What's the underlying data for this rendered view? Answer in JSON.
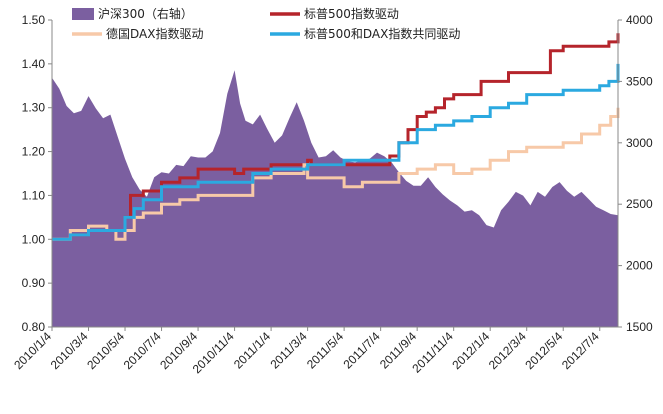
{
  "chart_data": {
    "type": "line",
    "title": "",
    "xlabel": "",
    "ylabel_left": "",
    "ylabel_right": "",
    "ylim_left": [
      0.8,
      1.5
    ],
    "ylim_right": [
      1500,
      4000
    ],
    "left_ticks": [
      "0.80",
      "0.90",
      "1.00",
      "1.10",
      "1.20",
      "1.30",
      "1.40",
      "1.50"
    ],
    "right_ticks": [
      "1500",
      "2000",
      "2500",
      "3000",
      "3500",
      "4000"
    ],
    "x_ticks": [
      "2010/1/4",
      "2010/3/4",
      "2010/5/4",
      "2010/7/4",
      "2010/9/4",
      "2010/11/4",
      "2011/1/4",
      "2011/3/4",
      "2011/5/4",
      "2011/7/4",
      "2011/9/4",
      "2011/11/4",
      "2012/1/4",
      "2012/3/4",
      "2012/5/4",
      "2012/7/4"
    ],
    "x_range_months": [
      0,
      31
    ],
    "legend": {
      "position": "top",
      "entries": [
        {
          "label": "沪深300（右轴）",
          "style": "area",
          "color": "#7b5fa0"
        },
        {
          "label": "标普500指数驱动",
          "style": "line",
          "color": "#b5242b"
        },
        {
          "label": "德国DAX指数驱动",
          "style": "line",
          "color": "#f7c9a8"
        },
        {
          "label": "标普500和DAX指数共同驱动",
          "style": "line",
          "color": "#2ba9e0"
        }
      ]
    },
    "series": [
      {
        "name": "沪深300（右轴）",
        "axis": "right",
        "type": "area",
        "color": "#7b5fa0",
        "points": [
          [
            0,
            3530
          ],
          [
            0.4,
            3440
          ],
          [
            0.8,
            3300
          ],
          [
            1.2,
            3240
          ],
          [
            1.6,
            3260
          ],
          [
            2,
            3380
          ],
          [
            2.4,
            3280
          ],
          [
            2.8,
            3200
          ],
          [
            3.2,
            3230
          ],
          [
            3.6,
            3050
          ],
          [
            4,
            2870
          ],
          [
            4.4,
            2720
          ],
          [
            4.8,
            2620
          ],
          [
            5.2,
            2560
          ],
          [
            5.6,
            2720
          ],
          [
            6,
            2760
          ],
          [
            6.4,
            2750
          ],
          [
            6.8,
            2820
          ],
          [
            7.2,
            2810
          ],
          [
            7.6,
            2890
          ],
          [
            8,
            2880
          ],
          [
            8.4,
            2880
          ],
          [
            8.8,
            2930
          ],
          [
            9.2,
            3080
          ],
          [
            9.6,
            3400
          ],
          [
            10,
            3590
          ],
          [
            10.3,
            3320
          ],
          [
            10.6,
            3180
          ],
          [
            11,
            3150
          ],
          [
            11.4,
            3230
          ],
          [
            11.8,
            3110
          ],
          [
            12.2,
            3000
          ],
          [
            12.6,
            3060
          ],
          [
            13,
            3200
          ],
          [
            13.4,
            3330
          ],
          [
            13.8,
            3180
          ],
          [
            14.2,
            3000
          ],
          [
            14.6,
            2880
          ],
          [
            15,
            2890
          ],
          [
            15.4,
            2940
          ],
          [
            15.8,
            2880
          ],
          [
            16.2,
            2850
          ],
          [
            16.6,
            2840
          ],
          [
            17,
            2860
          ],
          [
            17.4,
            2870
          ],
          [
            17.8,
            2920
          ],
          [
            18.2,
            2890
          ],
          [
            18.6,
            2840
          ],
          [
            19,
            2760
          ],
          [
            19.4,
            2690
          ],
          [
            19.8,
            2650
          ],
          [
            20.2,
            2650
          ],
          [
            20.6,
            2720
          ],
          [
            21,
            2640
          ],
          [
            21.4,
            2580
          ],
          [
            21.8,
            2530
          ],
          [
            22.2,
            2490
          ],
          [
            22.6,
            2440
          ],
          [
            23,
            2450
          ],
          [
            23.4,
            2410
          ],
          [
            23.8,
            2330
          ],
          [
            24.2,
            2310
          ],
          [
            24.6,
            2450
          ],
          [
            25,
            2520
          ],
          [
            25.4,
            2600
          ],
          [
            25.8,
            2570
          ],
          [
            26.2,
            2490
          ],
          [
            26.6,
            2600
          ],
          [
            27,
            2560
          ],
          [
            27.4,
            2640
          ],
          [
            27.8,
            2680
          ],
          [
            28.2,
            2610
          ],
          [
            28.6,
            2560
          ],
          [
            29,
            2600
          ],
          [
            29.4,
            2540
          ],
          [
            29.8,
            2480
          ],
          [
            30.2,
            2450
          ],
          [
            30.6,
            2420
          ],
          [
            31,
            2410
          ]
        ]
      },
      {
        "name": "标普500指数驱动",
        "axis": "left",
        "type": "line",
        "color": "#b5242b",
        "points": [
          [
            0,
            1.0
          ],
          [
            1,
            1.01
          ],
          [
            2,
            1.02
          ],
          [
            3,
            1.02
          ],
          [
            3.7,
            1.02
          ],
          [
            4,
            1.05
          ],
          [
            4.3,
            1.1
          ],
          [
            5,
            1.11
          ],
          [
            6,
            1.13
          ],
          [
            7,
            1.14
          ],
          [
            8,
            1.16
          ],
          [
            9,
            1.16
          ],
          [
            10,
            1.15
          ],
          [
            10.5,
            1.16
          ],
          [
            11,
            1.16
          ],
          [
            12,
            1.17
          ],
          [
            13,
            1.17
          ],
          [
            14,
            1.18
          ],
          [
            14.2,
            1.17
          ],
          [
            15,
            1.17
          ],
          [
            16,
            1.17
          ],
          [
            17,
            1.17
          ],
          [
            18,
            1.17
          ],
          [
            18.5,
            1.19
          ],
          [
            19,
            1.22
          ],
          [
            19.5,
            1.25
          ],
          [
            20,
            1.28
          ],
          [
            20.5,
            1.29
          ],
          [
            21,
            1.3
          ],
          [
            21.5,
            1.32
          ],
          [
            22,
            1.33
          ],
          [
            23,
            1.33
          ],
          [
            23.5,
            1.36
          ],
          [
            24,
            1.36
          ],
          [
            25,
            1.38
          ],
          [
            26,
            1.38
          ],
          [
            27,
            1.38
          ],
          [
            27.3,
            1.43
          ],
          [
            28,
            1.44
          ],
          [
            29,
            1.44
          ],
          [
            30,
            1.44
          ],
          [
            30.5,
            1.45
          ],
          [
            31,
            1.47
          ]
        ]
      },
      {
        "name": "德国DAX指数驱动",
        "axis": "left",
        "type": "line",
        "color": "#f7c9a8",
        "points": [
          [
            0,
            1.0
          ],
          [
            1,
            1.02
          ],
          [
            2,
            1.03
          ],
          [
            3,
            1.02
          ],
          [
            3.5,
            1.0
          ],
          [
            4,
            1.02
          ],
          [
            4.5,
            1.05
          ],
          [
            5,
            1.06
          ],
          [
            6,
            1.08
          ],
          [
            7,
            1.09
          ],
          [
            8,
            1.1
          ],
          [
            9,
            1.1
          ],
          [
            10,
            1.1
          ],
          [
            11,
            1.14
          ],
          [
            12,
            1.15
          ],
          [
            13,
            1.15
          ],
          [
            13.8,
            1.17
          ],
          [
            14,
            1.14
          ],
          [
            15,
            1.14
          ],
          [
            16,
            1.12
          ],
          [
            17,
            1.13
          ],
          [
            18,
            1.13
          ],
          [
            19,
            1.15
          ],
          [
            20,
            1.16
          ],
          [
            21,
            1.17
          ],
          [
            22,
            1.15
          ],
          [
            23,
            1.16
          ],
          [
            24,
            1.18
          ],
          [
            25,
            1.2
          ],
          [
            26,
            1.21
          ],
          [
            27,
            1.21
          ],
          [
            28,
            1.22
          ],
          [
            29,
            1.24
          ],
          [
            30,
            1.26
          ],
          [
            30.6,
            1.28
          ],
          [
            31,
            1.3
          ]
        ]
      },
      {
        "name": "标普500和DAX指数共同驱动",
        "axis": "left",
        "type": "line",
        "color": "#2ba9e0",
        "points": [
          [
            0,
            1.0
          ],
          [
            1,
            1.01
          ],
          [
            2,
            1.02
          ],
          [
            3,
            1.02
          ],
          [
            3.7,
            1.02
          ],
          [
            4,
            1.05
          ],
          [
            4.5,
            1.07
          ],
          [
            5,
            1.09
          ],
          [
            6,
            1.12
          ],
          [
            7,
            1.12
          ],
          [
            8,
            1.13
          ],
          [
            9,
            1.13
          ],
          [
            10,
            1.13
          ],
          [
            11,
            1.15
          ],
          [
            12,
            1.16
          ],
          [
            13,
            1.16
          ],
          [
            14,
            1.17
          ],
          [
            15,
            1.17
          ],
          [
            16,
            1.18
          ],
          [
            17,
            1.18
          ],
          [
            18,
            1.18
          ],
          [
            19,
            1.22
          ],
          [
            20,
            1.25
          ],
          [
            21,
            1.26
          ],
          [
            22,
            1.27
          ],
          [
            23,
            1.28
          ],
          [
            24,
            1.3
          ],
          [
            25,
            1.31
          ],
          [
            26,
            1.33
          ],
          [
            27,
            1.33
          ],
          [
            28,
            1.34
          ],
          [
            29,
            1.34
          ],
          [
            30,
            1.35
          ],
          [
            30.5,
            1.36
          ],
          [
            31,
            1.4
          ]
        ]
      }
    ]
  }
}
